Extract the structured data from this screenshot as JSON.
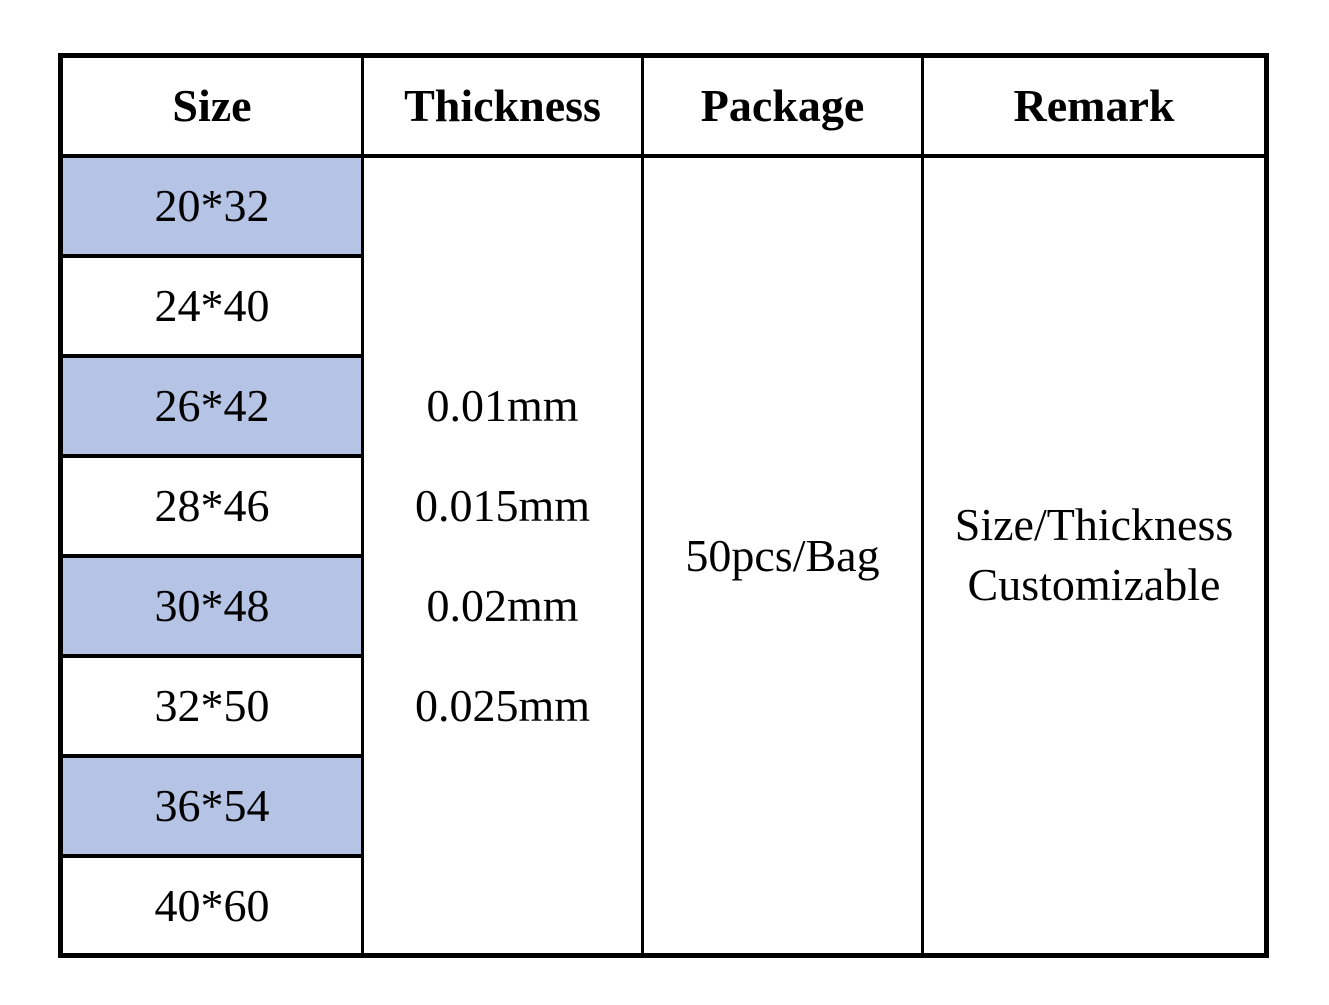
{
  "page": {
    "background_color": "#ffffff",
    "border_color": "#000000",
    "highlight_color": "#b5c4e5",
    "text_color": "#000000"
  },
  "table": {
    "headers": [
      "Size",
      "Thickness",
      "Package",
      "Remark"
    ],
    "size_rows": [
      {
        "label": "20*32",
        "highlighted": true
      },
      {
        "label": "24*40",
        "highlighted": false
      },
      {
        "label": "26*42",
        "highlighted": true
      },
      {
        "label": "28*46",
        "highlighted": false
      },
      {
        "label": "30*48",
        "highlighted": true
      },
      {
        "label": "32*50",
        "highlighted": false
      },
      {
        "label": "36*54",
        "highlighted": true
      },
      {
        "label": "40*60",
        "highlighted": false
      }
    ],
    "thickness_values": [
      "0.01mm",
      "0.015mm",
      "0.02mm",
      "0.025mm"
    ],
    "package": "50pcs/Bag",
    "remark_lines": [
      "Size/Thickness",
      "Customizable"
    ]
  }
}
